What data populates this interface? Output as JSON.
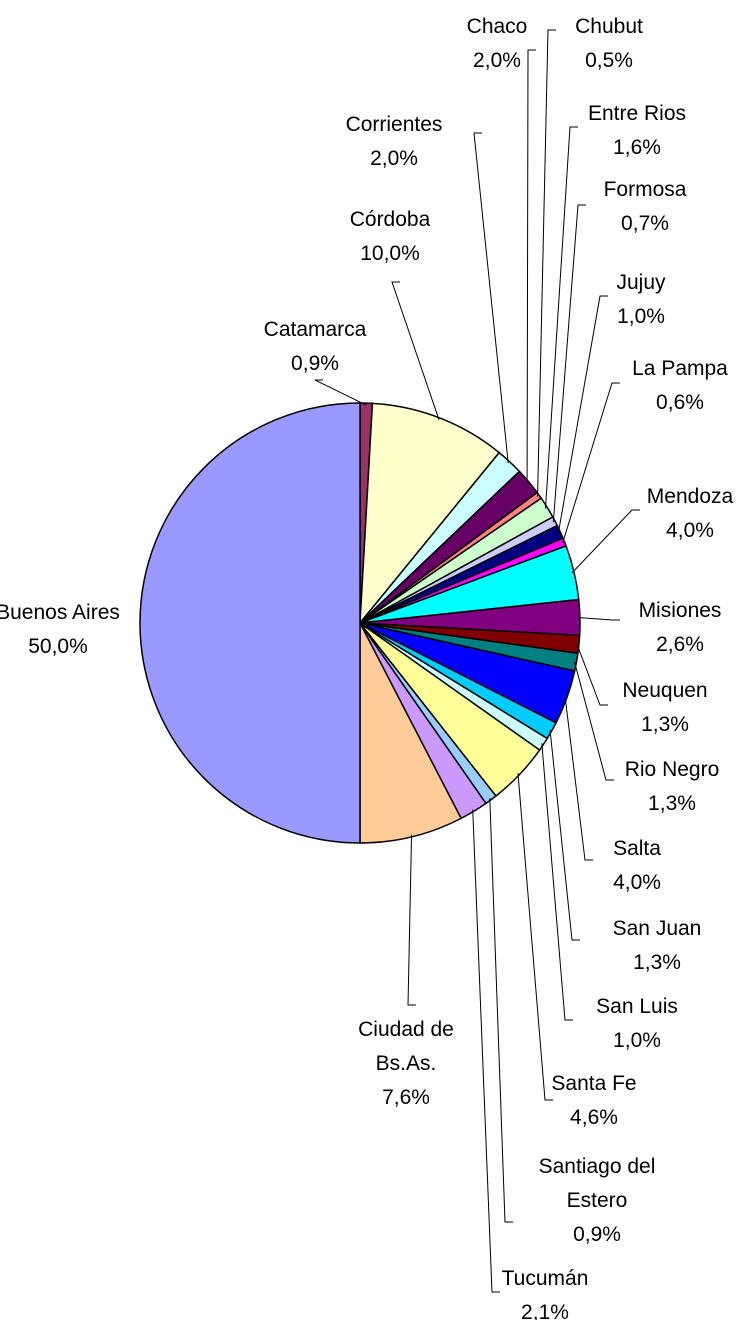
{
  "chart_data": {
    "type": "pie",
    "categories": [
      "Catamarca",
      "Córdoba",
      "Corrientes",
      "Chaco",
      "Chubut",
      "Entre Rios",
      "Formosa",
      "Jujuy",
      "La Pampa",
      "Mendoza",
      "Misiones",
      "Neuquen",
      "Rio Negro",
      "Salta",
      "San Juan",
      "San Luis",
      "Santa Fe",
      "Santiago del Estero",
      "Tucumán",
      "Ciudad de Bs.As.",
      "Buenos Aires"
    ],
    "values": [
      0.9,
      10.0,
      2.0,
      2.0,
      0.5,
      1.6,
      0.7,
      1.0,
      0.6,
      4.0,
      2.6,
      1.3,
      1.3,
      4.0,
      1.3,
      1.0,
      4.6,
      0.9,
      2.1,
      7.6,
      50.0
    ],
    "value_labels": [
      "0,9%",
      "10,0%",
      "2,0%",
      "2,0%",
      "0,5%",
      "1,6%",
      "0,7%",
      "1,0%",
      "0,6%",
      "4,0%",
      "2,6%",
      "1,3%",
      "1,3%",
      "4,0%",
      "1,3%",
      "1,0%",
      "4,6%",
      "0,9%",
      "2,1%",
      "7,6%",
      "50,0%"
    ],
    "colors": [
      "#993366",
      "#FFFFCC",
      "#CCFFFF",
      "#660066",
      "#FF8080",
      "#CCFFCC",
      "#CCCCFF",
      "#000080",
      "#FF00FF",
      "#00FFFF",
      "#800080",
      "#800000",
      "#008080",
      "#0000FF",
      "#00CCFF",
      "#CCFFFF",
      "#FFFF99",
      "#99CCFF",
      "#CC99FF",
      "#FFCC99",
      "#9999FF"
    ]
  }
}
